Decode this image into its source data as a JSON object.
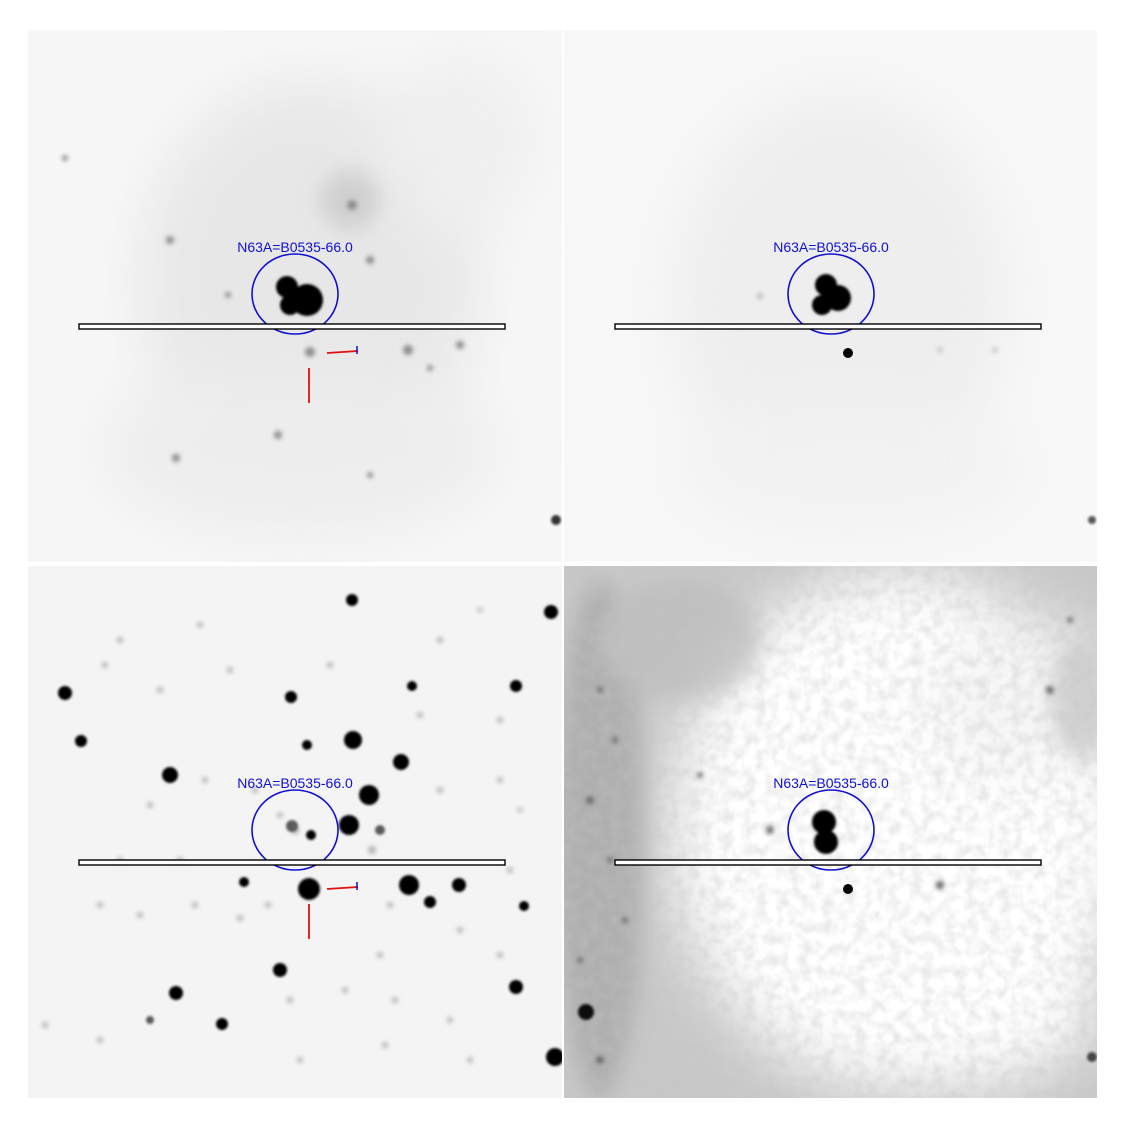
{
  "figure": {
    "panels": [
      {
        "id": "top-left",
        "label": "N63A=B0535-66.0",
        "style": "optical-stars-faint",
        "has_pointer": true
      },
      {
        "id": "top-right",
        "label": "N63A=B0535-66.0",
        "style": "subtracted-smooth",
        "has_pointer": false
      },
      {
        "id": "bottom-left",
        "label": "N63A=B0535-66.0",
        "style": "dense-stars",
        "has_pointer": true
      },
      {
        "id": "bottom-right",
        "label": "N63A=B0535-66.0",
        "style": "noisy-residual",
        "has_pointer": false
      }
    ],
    "colors": {
      "label": "#1010d0",
      "ellipse": "#1010d0",
      "slit": "#000000",
      "pointer": "#e01010",
      "pointer_tick": "#1010d0",
      "source": "#000000"
    }
  }
}
